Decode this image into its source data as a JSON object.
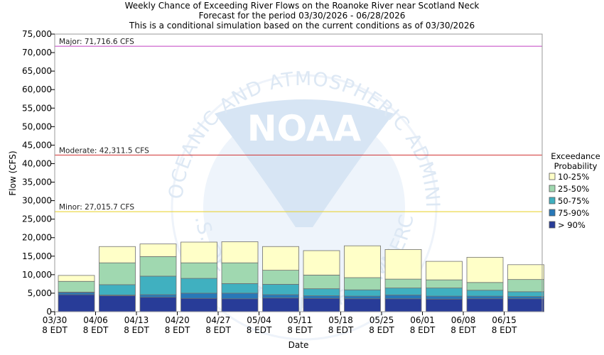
{
  "chart_data": {
    "type": "bar",
    "stacked": true,
    "title_lines": [
      "Weekly Chance of Exceeding River Flows on the Roanoke River near Scotland Neck",
      "Forecast for the period 03/30/2026 - 06/28/2026",
      "This is a conditional simulation based on the current conditions as of 03/30/2026"
    ],
    "xlabel": "Date",
    "ylabel": "Flow (CFS)",
    "ylim": [
      0,
      75000
    ],
    "y_ticks": [
      0,
      5000,
      10000,
      15000,
      20000,
      25000,
      30000,
      35000,
      40000,
      45000,
      50000,
      55000,
      60000,
      65000,
      70000,
      75000
    ],
    "y_tick_labels": [
      "0",
      "5,000",
      "10,000",
      "15,000",
      "20,000",
      "25,000",
      "30,000",
      "35,000",
      "40,000",
      "45,000",
      "50,000",
      "55,000",
      "60,000",
      "65,000",
      "70,000",
      "75,000"
    ],
    "x_tick_labels": [
      {
        "date": "03/30",
        "time": "8 EDT"
      },
      {
        "date": "04/06",
        "time": "8 EDT"
      },
      {
        "date": "04/13",
        "time": "8 EDT"
      },
      {
        "date": "04/20",
        "time": "8 EDT"
      },
      {
        "date": "04/27",
        "time": "8 EDT"
      },
      {
        "date": "05/04",
        "time": "8 EDT"
      },
      {
        "date": "05/11",
        "time": "8 EDT"
      },
      {
        "date": "05/18",
        "time": "8 EDT"
      },
      {
        "date": "05/25",
        "time": "8 EDT"
      },
      {
        "date": "06/01",
        "time": "8 EDT"
      },
      {
        "date": "06/08",
        "time": "8 EDT"
      },
      {
        "date": "06/15",
        "time": "8 EDT"
      }
    ],
    "weeks": [
      {
        "levels": [
          4600,
          5200,
          5300,
          8200,
          9800
        ]
      },
      {
        "levels": [
          4300,
          4500,
          7300,
          13200,
          17600
        ]
      },
      {
        "levels": [
          3900,
          4600,
          9600,
          14900,
          18300
        ]
      },
      {
        "levels": [
          3600,
          5000,
          9000,
          13200,
          18800
        ]
      },
      {
        "levels": [
          3500,
          5000,
          7600,
          13200,
          18900
        ]
      },
      {
        "levels": [
          3700,
          4600,
          7400,
          11200,
          17600
        ]
      },
      {
        "levels": [
          3600,
          4300,
          6200,
          9900,
          16500
        ]
      },
      {
        "levels": [
          3500,
          4200,
          5900,
          9200,
          17800
        ]
      },
      {
        "levels": [
          3500,
          4500,
          6400,
          8800,
          16800
        ]
      },
      {
        "levels": [
          3400,
          4200,
          6400,
          8600,
          13600
        ]
      },
      {
        "levels": [
          3500,
          4200,
          5800,
          7900,
          14700
        ]
      },
      {
        "levels": [
          3500,
          4100,
          5400,
          8700,
          12700
        ]
      }
    ],
    "thresholds": [
      {
        "label": "Major: 71,716.6 CFS",
        "value": 71716.6,
        "color": "#c040c0"
      },
      {
        "label": "Moderate: 42,311.5 CFS",
        "value": 42311.5,
        "color": "#d03030"
      },
      {
        "label": "Minor: 27,015.7 CFS",
        "value": 27015.7,
        "color": "#e8d020"
      }
    ],
    "legend": {
      "title_lines": [
        "Exceedance",
        "Probability"
      ],
      "position": "right",
      "entries": [
        {
          "label": "10-25%",
          "color": "#ffffc8"
        },
        {
          "label": "25-50%",
          "color": "#a0d8b0"
        },
        {
          "label": "50-75%",
          "color": "#40b0c0"
        },
        {
          "label": "75-90%",
          "color": "#2878b8"
        },
        {
          "label": "> 90%",
          "color": "#283c98"
        }
      ]
    },
    "watermark": {
      "text": "NATIONAL OCEANIC AND ATMOSPHERIC ADMINISTRATION",
      "logo_text": "NOAA",
      "bottom_text": "U.S. DEPARTMENT OF COMMERCE"
    }
  }
}
